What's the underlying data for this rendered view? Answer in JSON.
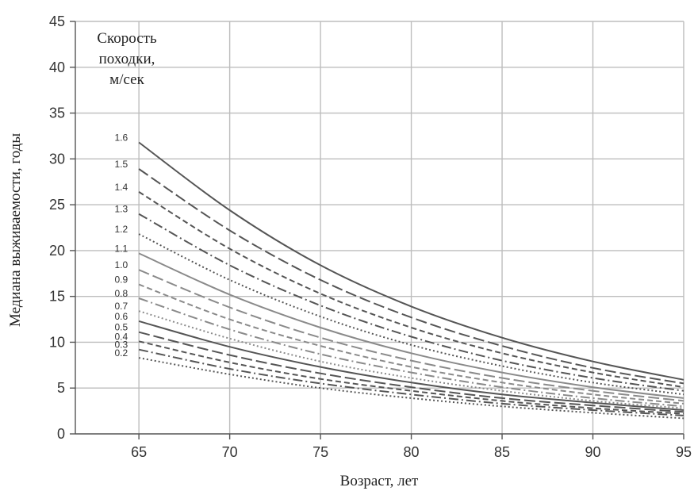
{
  "chart_data": {
    "type": "line",
    "title": "",
    "xlabel": "Возраст, лет",
    "ylabel": "Медиана выживаемости, годы",
    "xlim": [
      61.5,
      95
    ],
    "ylim": [
      0,
      45
    ],
    "x_ticks": [
      65,
      70,
      75,
      80,
      85,
      90,
      95
    ],
    "y_ticks": [
      0,
      5,
      10,
      15,
      20,
      25,
      30,
      35,
      40,
      45
    ],
    "grid": true,
    "legend_title": [
      "Скорость",
      "походки,",
      "м/сек"
    ],
    "legend_placement": "top-left",
    "x": [
      65,
      70,
      75,
      80,
      85,
      90,
      95
    ],
    "series": [
      {
        "name": "1.6",
        "values": [
          31.8,
          24.4,
          18.4,
          13.9,
          10.5,
          7.9,
          5.9
        ],
        "color": "#555555",
        "dash": ""
      },
      {
        "name": "1.5",
        "values": [
          28.9,
          22.2,
          16.8,
          12.7,
          9.6,
          7.2,
          5.5
        ],
        "color": "#555555",
        "dash": "14 5"
      },
      {
        "name": "1.4",
        "values": [
          26.4,
          20.2,
          15.3,
          11.6,
          8.8,
          6.7,
          5.1
        ],
        "color": "#555555",
        "dash": "7 4"
      },
      {
        "name": "1.3",
        "values": [
          24.0,
          18.4,
          14.0,
          10.6,
          8.0,
          6.1,
          4.7
        ],
        "color": "#555555",
        "dash": "12 4 2 4"
      },
      {
        "name": "1.2",
        "values": [
          21.8,
          16.8,
          12.8,
          9.7,
          7.4,
          5.6,
          4.3
        ],
        "color": "#555555",
        "dash": "2 3"
      },
      {
        "name": "1.1",
        "values": [
          19.7,
          15.2,
          11.6,
          8.8,
          6.7,
          5.1,
          3.9
        ],
        "color": "#8a8a8a",
        "dash": ""
      },
      {
        "name": "1.0",
        "values": [
          17.9,
          13.8,
          10.5,
          8.0,
          6.1,
          4.7,
          3.6
        ],
        "color": "#8a8a8a",
        "dash": "14 5"
      },
      {
        "name": "0.9",
        "values": [
          16.3,
          12.5,
          9.6,
          7.3,
          5.6,
          4.3,
          3.3
        ],
        "color": "#8a8a8a",
        "dash": "7 4"
      },
      {
        "name": "0.8",
        "values": [
          14.8,
          11.4,
          8.7,
          6.7,
          5.1,
          3.9,
          3.0
        ],
        "color": "#8a8a8a",
        "dash": "12 4 2 4"
      },
      {
        "name": "0.7",
        "values": [
          13.4,
          10.4,
          7.9,
          6.1,
          4.7,
          3.6,
          2.8
        ],
        "color": "#8a8a8a",
        "dash": "2 3"
      },
      {
        "name": "0.6",
        "values": [
          12.3,
          9.5,
          7.3,
          5.6,
          4.3,
          3.4,
          2.6
        ],
        "color": "#555555",
        "dash": ""
      },
      {
        "name": "0.5",
        "values": [
          11.1,
          8.6,
          6.6,
          5.1,
          3.9,
          3.1,
          2.4
        ],
        "color": "#555555",
        "dash": "14 5"
      },
      {
        "name": "0.4",
        "values": [
          10.1,
          7.8,
          6.0,
          4.7,
          3.6,
          2.8,
          2.2
        ],
        "color": "#555555",
        "dash": "7 4"
      },
      {
        "name": "0.3",
        "values": [
          9.2,
          7.1,
          5.5,
          4.3,
          3.3,
          2.6,
          2.0
        ],
        "color": "#555555",
        "dash": "12 4 2 4"
      },
      {
        "name": "0.2",
        "values": [
          8.3,
          6.5,
          5.0,
          3.9,
          3.0,
          2.3,
          1.7
        ],
        "color": "#555555",
        "dash": "2 3"
      }
    ]
  }
}
